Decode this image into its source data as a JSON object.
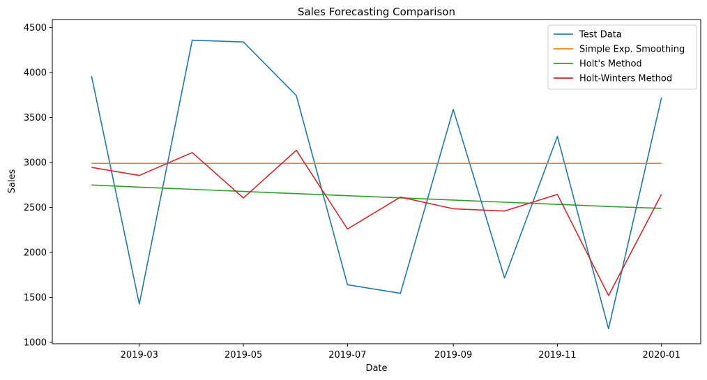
{
  "chart_data": {
    "type": "line",
    "title": "Sales Forecasting Comparison",
    "xlabel": "Date",
    "ylabel": "Sales",
    "x": [
      "2019-02-01",
      "2019-03-01",
      "2019-04-01",
      "2019-05-01",
      "2019-06-01",
      "2019-07-01",
      "2019-08-01",
      "2019-09-01",
      "2019-10-01",
      "2019-11-01",
      "2019-12-01",
      "2020-01-01"
    ],
    "xticks": [
      {
        "date": "2019-03-01",
        "label": "2019-03"
      },
      {
        "date": "2019-05-01",
        "label": "2019-05"
      },
      {
        "date": "2019-07-01",
        "label": "2019-07"
      },
      {
        "date": "2019-09-01",
        "label": "2019-09"
      },
      {
        "date": "2019-11-01",
        "label": "2019-11"
      },
      {
        "date": "2020-01-01",
        "label": "2020-01"
      }
    ],
    "yticks": [
      1000,
      1500,
      2000,
      2500,
      3000,
      3500,
      4000,
      4500
    ],
    "xlim": [
      "2019-01-09",
      "2020-01-24"
    ],
    "ylim": [
      984,
      4590
    ],
    "grid": false,
    "legend_position": "top-right",
    "series": [
      {
        "name": "Test Data",
        "color": "#1f77b4",
        "values": [
          3960,
          1425,
          4360,
          4340,
          3745,
          1640,
          1545,
          3590,
          1715,
          3290,
          1150,
          3720
        ]
      },
      {
        "name": "Simple Exp. Smoothing",
        "color": "#ff7f0e",
        "values": [
          2990,
          2990,
          2990,
          2990,
          2990,
          2990,
          2990,
          2990,
          2990,
          2990,
          2990,
          2990
        ]
      },
      {
        "name": "Holt's Method",
        "color": "#2ca02c",
        "values": [
          2750,
          2726,
          2702,
          2678,
          2654,
          2630,
          2606,
          2582,
          2558,
          2534,
          2510,
          2490
        ]
      },
      {
        "name": "Holt-Winters Method",
        "color": "#d62728",
        "values": [
          2945,
          2855,
          3110,
          2605,
          3135,
          2260,
          2615,
          2485,
          2460,
          2645,
          1520,
          2645
        ]
      }
    ]
  }
}
